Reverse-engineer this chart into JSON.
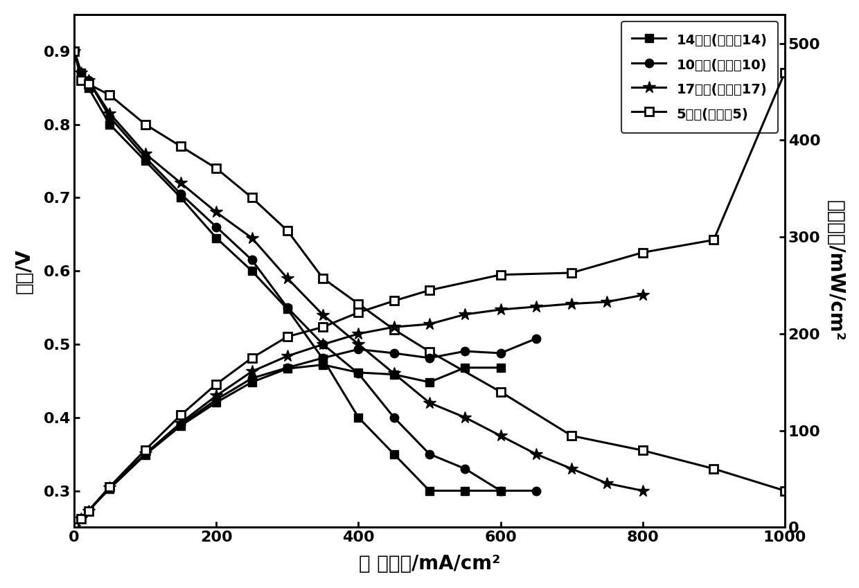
{
  "title": "",
  "xlabel": "电 流密度/mA/cm²",
  "ylabel_left": "电压/V",
  "ylabel_right": "能量密度/mW/cm²",
  "xlim": [
    0,
    1000
  ],
  "ylim_left": [
    0.25,
    0.95
  ],
  "ylim_right": [
    0,
    530
  ],
  "xticks": [
    0,
    200,
    400,
    600,
    800,
    1000
  ],
  "yticks_left": [
    0.3,
    0.4,
    0.5,
    0.6,
    0.7,
    0.8,
    0.9
  ],
  "yticks_right": [
    0,
    100,
    200,
    300,
    400,
    500
  ],
  "series14_voltage_x": [
    0,
    10,
    20,
    50,
    100,
    150,
    200,
    250,
    300,
    350,
    400,
    450,
    500,
    550,
    600
  ],
  "series14_voltage_y": [
    0.9,
    0.87,
    0.85,
    0.8,
    0.75,
    0.7,
    0.645,
    0.6,
    0.548,
    0.48,
    0.4,
    0.35,
    0.3,
    0.3,
    0.3
  ],
  "series10_voltage_x": [
    0,
    10,
    20,
    50,
    100,
    150,
    200,
    250,
    300,
    350,
    400,
    450,
    500,
    550,
    600,
    650
  ],
  "series10_voltage_y": [
    0.9,
    0.87,
    0.86,
    0.81,
    0.755,
    0.705,
    0.66,
    0.615,
    0.55,
    0.5,
    0.46,
    0.4,
    0.35,
    0.33,
    0.3,
    0.3
  ],
  "series17_voltage_x": [
    0,
    10,
    20,
    50,
    100,
    150,
    200,
    250,
    300,
    350,
    400,
    450,
    500,
    550,
    600,
    650,
    700,
    750,
    800
  ],
  "series17_voltage_y": [
    0.9,
    0.87,
    0.86,
    0.815,
    0.76,
    0.72,
    0.68,
    0.645,
    0.59,
    0.54,
    0.5,
    0.46,
    0.42,
    0.4,
    0.375,
    0.35,
    0.33,
    0.31,
    0.3
  ],
  "series5_voltage_x": [
    0,
    10,
    20,
    50,
    100,
    150,
    200,
    250,
    300,
    350,
    400,
    450,
    500,
    600,
    700,
    800,
    900,
    1000
  ],
  "series5_voltage_y": [
    0.9,
    0.86,
    0.855,
    0.84,
    0.8,
    0.77,
    0.74,
    0.7,
    0.655,
    0.59,
    0.555,
    0.52,
    0.49,
    0.435,
    0.375,
    0.355,
    0.33,
    0.3
  ],
  "series14_power_x": [
    0,
    10,
    20,
    50,
    100,
    150,
    200,
    250,
    300,
    350,
    400,
    450,
    500,
    550,
    600
  ],
  "series14_power_y": [
    0,
    9,
    17,
    40,
    75,
    105,
    129,
    150,
    164,
    168,
    160,
    158,
    150,
    165,
    165
  ],
  "series10_power_x": [
    0,
    10,
    20,
    50,
    100,
    150,
    200,
    250,
    300,
    350,
    400,
    450,
    500,
    550,
    600,
    650
  ],
  "series10_power_y": [
    0,
    9,
    17,
    41,
    76,
    106,
    132,
    154,
    165,
    175,
    184,
    180,
    175,
    182,
    180,
    195
  ],
  "series17_power_x": [
    0,
    10,
    20,
    50,
    100,
    150,
    200,
    250,
    300,
    350,
    400,
    450,
    500,
    550,
    600,
    650,
    700,
    750,
    800
  ],
  "series17_power_y": [
    0,
    9,
    17,
    41,
    76,
    108,
    136,
    161,
    177,
    189,
    200,
    207,
    210,
    220,
    225,
    228,
    231,
    233,
    240
  ],
  "series5_power_x": [
    0,
    10,
    20,
    50,
    100,
    150,
    200,
    250,
    300,
    350,
    400,
    450,
    500,
    600,
    700,
    800,
    900,
    1000
  ],
  "series5_power_y": [
    0,
    9,
    17,
    42,
    80,
    116,
    148,
    175,
    197,
    207,
    222,
    234,
    245,
    261,
    263,
    284,
    297,
    470
  ],
  "legend_labels": [
    "14号膜(实施例14)",
    "10号膜(实施例10)",
    "17号膜(实施例17)",
    "5号膜(实施例5)"
  ],
  "line_color": "#000000",
  "background_color": "#ffffff",
  "fontsize_label": 20,
  "fontsize_tick": 16,
  "fontsize_legend": 14
}
